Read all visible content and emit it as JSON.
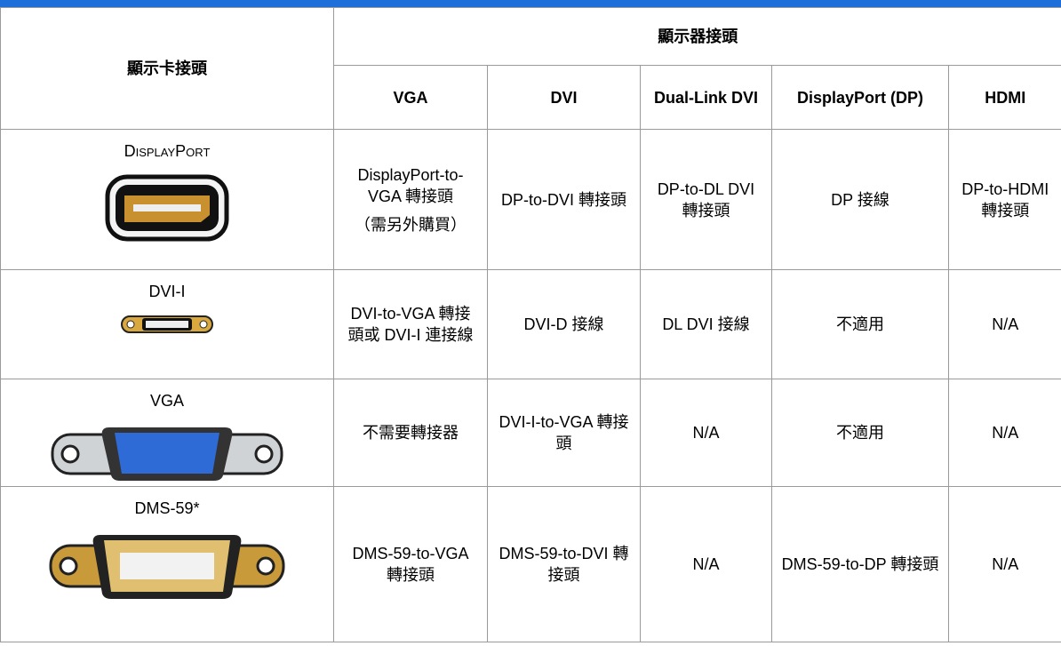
{
  "table": {
    "header": {
      "corner": "顯示卡接頭",
      "group": "顯示器接頭",
      "columns": [
        "VGA",
        "DVI",
        "Dual-Link DVI",
        "DisplayPort (DP)",
        "HDMI"
      ]
    },
    "rows": [
      {
        "connector": "DisplayPort",
        "cells": [
          "DisplayPort-to-VGA 轉接頭",
          "DP-to-DVI 轉接頭",
          "DP-to-DL DVI 轉接頭",
          "DP 接線",
          "DP-to-HDMI 轉接頭"
        ],
        "note": "（需另外購買）"
      },
      {
        "connector": "DVI-I",
        "cells": [
          "DVI-to-VGA 轉接頭或 DVI-I 連接線",
          "DVI-D 接線",
          "DL DVI 接線",
          "不適用",
          "N/A"
        ]
      },
      {
        "connector": "VGA",
        "cells": [
          "不需要轉接器",
          "DVI-I-to-VGA 轉接頭",
          "N/A",
          "不適用",
          "N/A"
        ]
      },
      {
        "connector": "DMS-59*",
        "cells": [
          "DMS-59-to-VGA 轉接頭",
          "DMS-59-to-DVI 轉接頭",
          "N/A",
          "DMS-59-to-DP 轉接頭",
          "N/A"
        ]
      }
    ]
  }
}
